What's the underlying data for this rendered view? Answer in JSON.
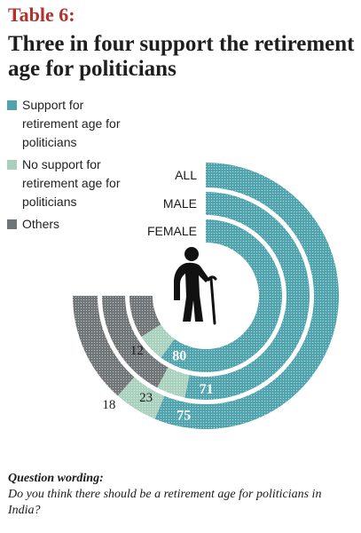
{
  "header": {
    "table_label": "Table 6:",
    "title": "Three in four support the retirement age for politicians"
  },
  "legend": {
    "items": [
      {
        "label": "Support for retirement age for politicians",
        "color": "#4fa3ad"
      },
      {
        "label": "No support for retirement age for politicians",
        "color": "#a9d0bd"
      },
      {
        "label": "Others",
        "color": "#6f7476"
      }
    ]
  },
  "chart_data": {
    "type": "radial-bar",
    "categories": [
      "ALL",
      "MALE",
      "FEMALE"
    ],
    "series": [
      {
        "name": "Support for retirement age for politicians",
        "values": [
          75,
          71,
          80
        ],
        "color": "#4fa3ad"
      },
      {
        "name": "No support for retirement age for politicians",
        "color": "#a9d0bd"
      },
      {
        "name": "Others",
        "values": [
          18,
          23,
          12
        ],
        "color": "#6f7476"
      }
    ],
    "value_labels": {
      "support": [
        "75",
        "71",
        "80"
      ],
      "others": [
        "18",
        "23",
        "12"
      ]
    },
    "icon": "elderly-person-with-cane-icon"
  },
  "question": {
    "heading": "Question wording:",
    "text": "Do you think there should be a retirement age for politicians in India?"
  }
}
